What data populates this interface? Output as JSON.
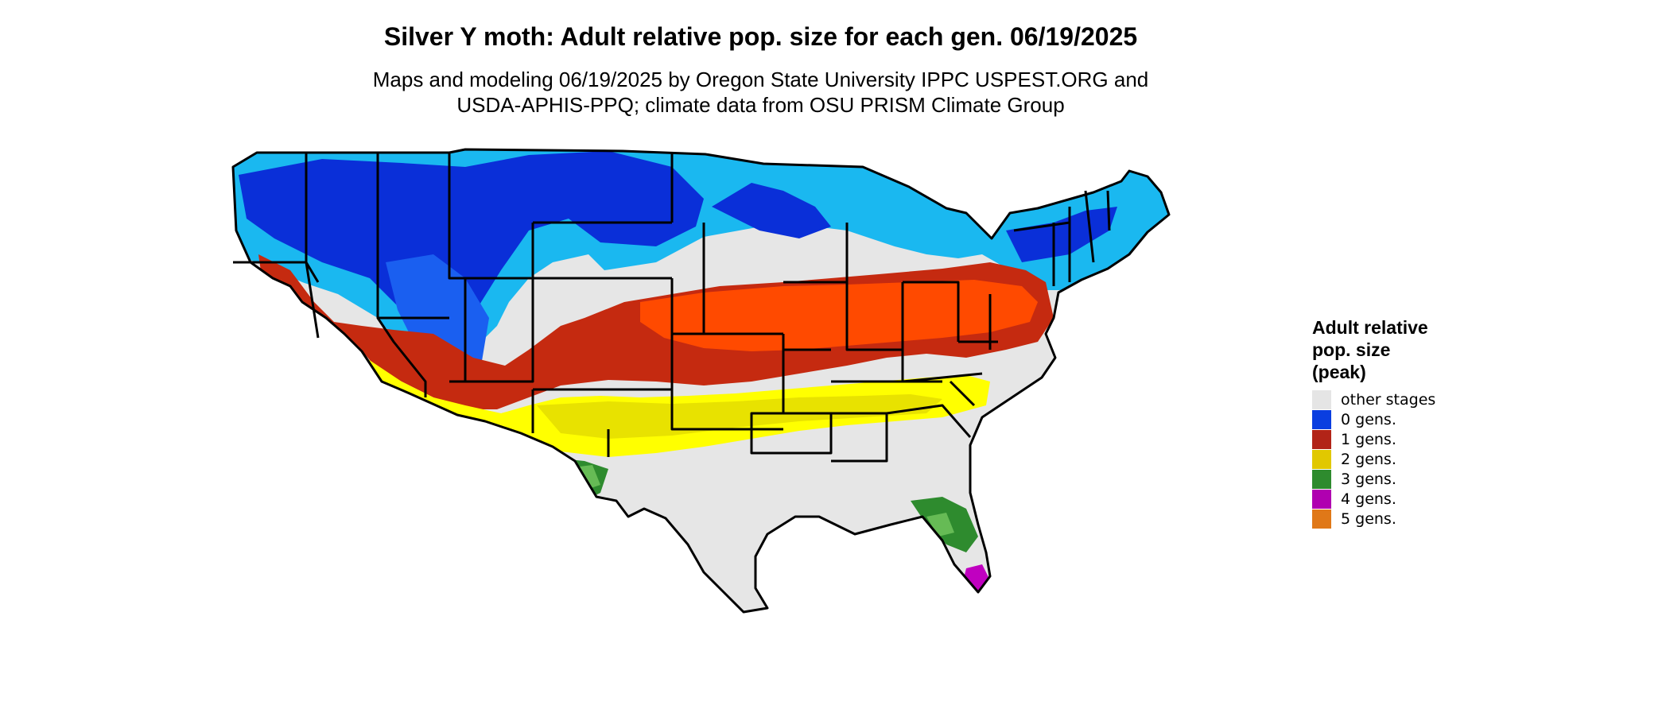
{
  "title": "Silver Y moth: Adult relative pop. size for each gen. 06/19/2025",
  "subtitle_line1": "Maps and modeling 06/19/2025 by Oregon State University IPPC USPEST.ORG and",
  "subtitle_line2": "USDA-APHIS-PPQ; climate data from OSU PRISM Climate Group",
  "legend": {
    "title_line1": "Adult relative",
    "title_line2": "pop. size",
    "title_line3": "(peak)",
    "items": [
      {
        "label": "other stages",
        "color": "#e5e5e5"
      },
      {
        "label": "0 gens.",
        "color": "#0a3ee0"
      },
      {
        "label": "1 gens.",
        "color": "#b22418"
      },
      {
        "label": "2 gens.",
        "color": "#e1c800"
      },
      {
        "label": "3 gens.",
        "color": "#2e8b2e"
      },
      {
        "label": "4 gens.",
        "color": "#b000b0"
      },
      {
        "label": "5 gens.",
        "color": "#e07818"
      }
    ]
  },
  "map_palette": {
    "other_stages": "#e6e6e6",
    "zero_gens_dark": "#0022cc",
    "zero_gens_light": "#1ab8f0",
    "one_gen_red": "#c52a10",
    "one_gen_orange": "#ff4a00",
    "two_gens": "#ffff00",
    "three_gens": "#2e8b2e",
    "four_gens": "#c000c0",
    "border": "#000000"
  }
}
